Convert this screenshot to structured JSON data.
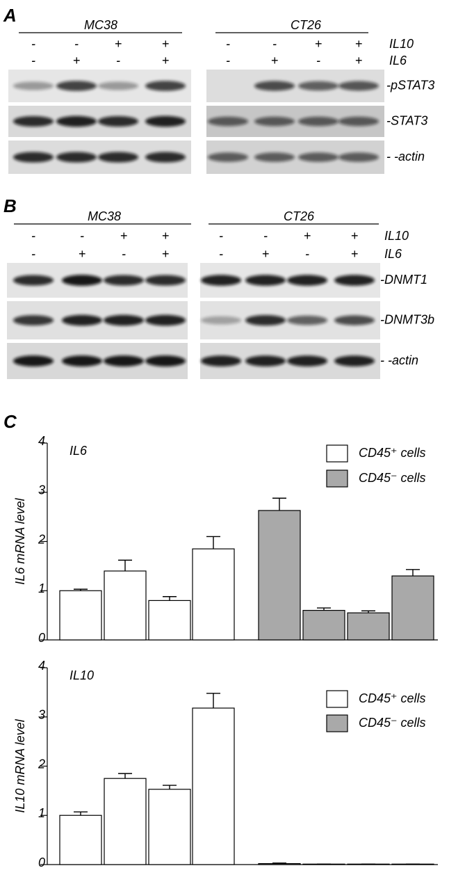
{
  "panel_a": {
    "label": "A",
    "groups": [
      {
        "name": "MC38",
        "il10": [
          "-",
          "-",
          "+",
          "+"
        ],
        "il6": [
          "-",
          "+",
          "-",
          "+"
        ]
      },
      {
        "name": "CT26",
        "il10": [
          "-",
          "-",
          "+",
          "+"
        ],
        "il6": [
          "-",
          "+",
          "-",
          "+"
        ]
      }
    ],
    "treatment_labels": [
      "IL10",
      "IL6"
    ],
    "rows": [
      "-pSTAT3",
      "-STAT3",
      "- -actin"
    ]
  },
  "panel_b": {
    "label": "B",
    "groups": [
      {
        "name": "MC38",
        "il10": [
          "-",
          "-",
          "+",
          "+"
        ],
        "il6": [
          "-",
          "+",
          "-",
          "+"
        ]
      },
      {
        "name": "CT26",
        "il10": [
          "-",
          "-",
          "+",
          "+"
        ],
        "il6": [
          "-",
          "+",
          "-",
          "+"
        ]
      }
    ],
    "treatment_labels": [
      "IL10",
      "IL6"
    ],
    "rows": [
      "-DNMT1",
      "-DNMT3b",
      "- -actin"
    ]
  },
  "panel_c": {
    "label": "C"
  },
  "chart_data": [
    {
      "type": "bar",
      "title": "IL6",
      "y_label": "IL6 mRNA level",
      "ylim": [
        0,
        4
      ],
      "yticks": [
        0,
        1,
        2,
        3,
        4
      ],
      "series": [
        {
          "name": "CD45⁺ cells",
          "color": "#ffffff",
          "values": [
            1.0,
            1.4,
            0.8,
            1.85
          ],
          "errors": [
            0.03,
            0.22,
            0.08,
            0.25
          ]
        },
        {
          "name": "CD45⁻ cells",
          "color": "#a9a9a9",
          "values": [
            2.63,
            0.6,
            0.55,
            1.3
          ],
          "errors": [
            0.25,
            0.05,
            0.04,
            0.13
          ]
        }
      ]
    },
    {
      "type": "bar",
      "title": "IL10",
      "y_label": "IL10 mRNA level",
      "ylim": [
        0,
        4
      ],
      "yticks": [
        0,
        1,
        2,
        3,
        4
      ],
      "series": [
        {
          "name": "CD45⁺ cells",
          "color": "#ffffff",
          "values": [
            1.0,
            1.75,
            1.53,
            3.18
          ],
          "errors": [
            0.07,
            0.1,
            0.08,
            0.3
          ]
        },
        {
          "name": "CD45⁻ cells",
          "color": "#a9a9a9",
          "values": [
            0.02,
            0.01,
            0.01,
            0.01
          ],
          "errors": [
            0.01,
            0,
            0,
            0
          ]
        }
      ]
    }
  ]
}
